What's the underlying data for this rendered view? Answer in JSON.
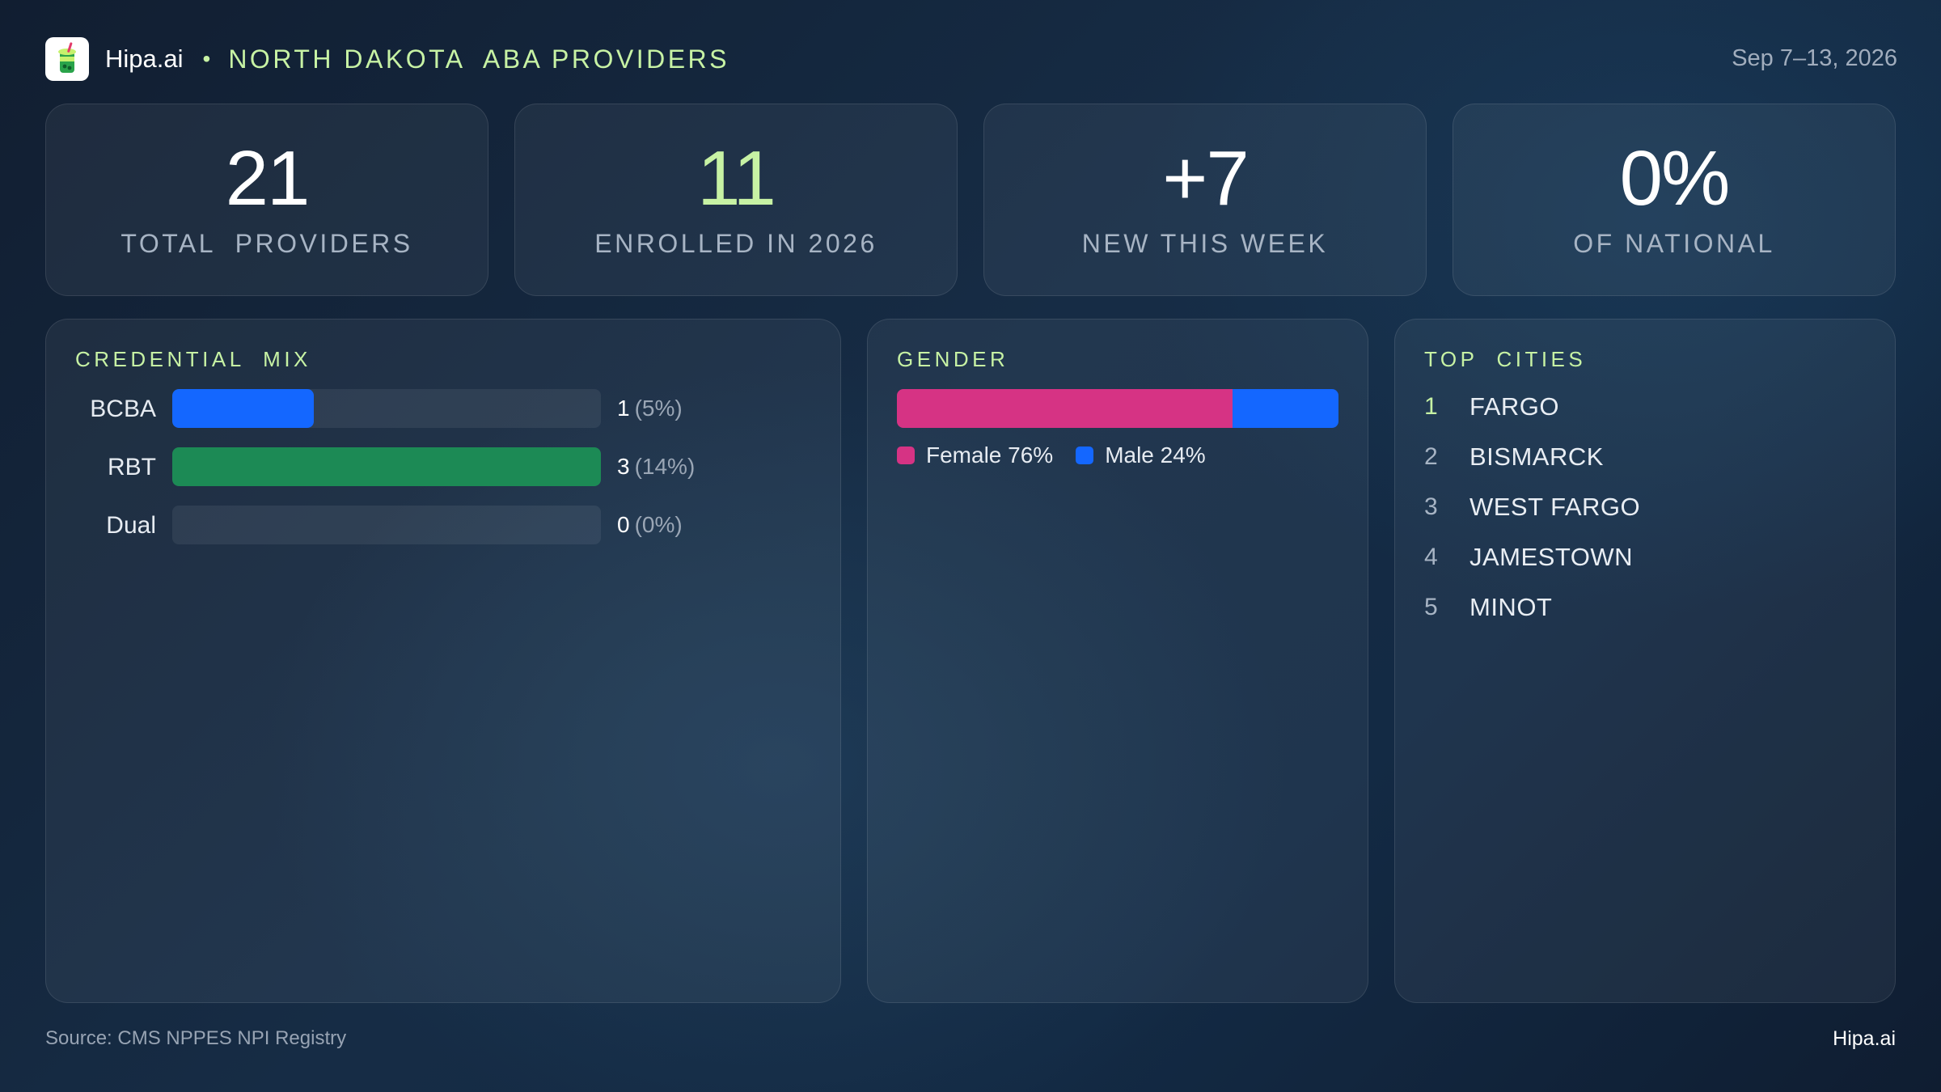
{
  "header": {
    "brand": "Hipa.ai",
    "separator": "•",
    "title": "NORTH DAKOTA  ABA PROVIDERS",
    "date_range": "Sep 7–13, 2026",
    "logo_icon": "drink-cup-icon"
  },
  "kpis": [
    {
      "value": "21",
      "label": "TOTAL  PROVIDERS",
      "color": "#ffffff"
    },
    {
      "value": "11",
      "label": "ENROLLED IN 2026",
      "color": "#c7f2a4"
    },
    {
      "value": "+7",
      "label": "NEW THIS WEEK",
      "color": "#ffffff"
    },
    {
      "value": "0%",
      "label": "OF NATIONAL",
      "color": "#ffffff"
    }
  ],
  "credential_panel": {
    "title": "CREDENTIAL  MIX"
  },
  "gender_panel": {
    "title": "GENDER"
  },
  "cities_panel": {
    "title": "TOP  CITIES",
    "cities": [
      {
        "rank": "1",
        "name": "FARGO"
      },
      {
        "rank": "2",
        "name": "BISMARCK"
      },
      {
        "rank": "3",
        "name": "WEST FARGO"
      },
      {
        "rank": "4",
        "name": "JAMESTOWN"
      },
      {
        "rank": "5",
        "name": "MINOT"
      }
    ]
  },
  "chart_data": [
    {
      "type": "bar",
      "orientation": "horizontal",
      "title": "CREDENTIAL  MIX",
      "categories": [
        "BCBA",
        "RBT",
        "Dual"
      ],
      "values": [
        1,
        3,
        0
      ],
      "value_labels": [
        "1",
        "3",
        "0"
      ],
      "percent_labels": [
        "(5%)",
        "(14%)",
        "(0%)"
      ],
      "bar_fraction_of_track": [
        0.33,
        1.0,
        0.0
      ],
      "colors": [
        "#1467ff",
        "#1c8a55",
        "#1c8a55"
      ]
    },
    {
      "type": "bar",
      "orientation": "stacked-horizontal",
      "title": "GENDER",
      "series": [
        {
          "name": "Female",
          "value": 76,
          "label": "Female 76%",
          "color": "#d63384"
        },
        {
          "name": "Male",
          "value": 24,
          "label": "Male 24%",
          "color": "#1467ff"
        }
      ]
    }
  ],
  "footer": {
    "source": "Source: CMS NPPES NPI Registry",
    "brand": "Hipa.ai"
  }
}
